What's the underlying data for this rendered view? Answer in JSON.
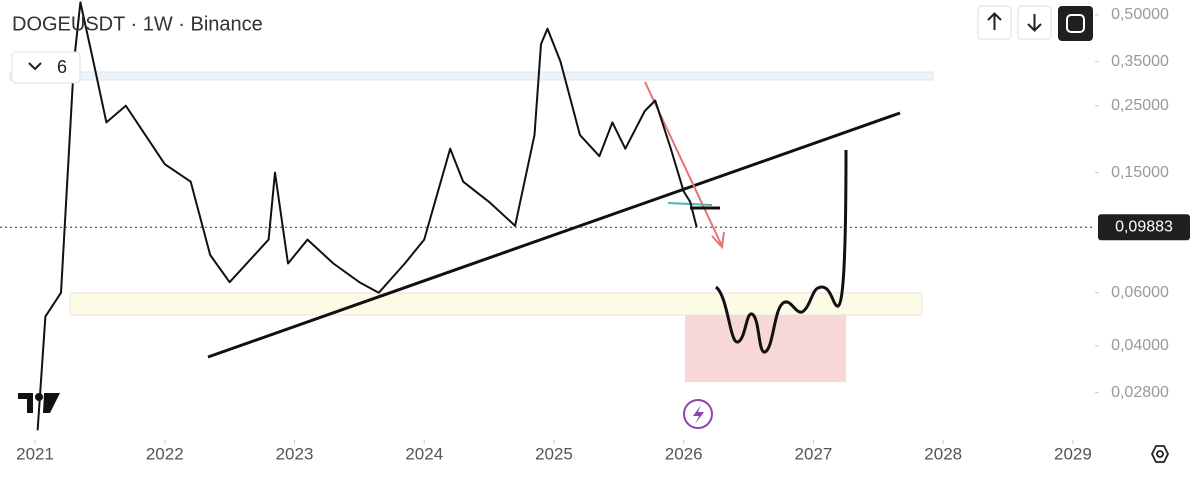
{
  "chart_data": {
    "type": "line",
    "title": "DOGEUSDT · 1W · Binance",
    "indicator_count": "6",
    "log_scale": true,
    "xlim": [
      2020.73,
      2029.17
    ],
    "ylim": [
      0.0195,
      0.56
    ],
    "xticks": [
      2021,
      2022,
      2023,
      2024,
      2025,
      2026,
      2027,
      2028,
      2029
    ],
    "yticks": [
      {
        "value": 0.5,
        "label": "0,50000"
      },
      {
        "value": 0.35,
        "label": "0,35000"
      },
      {
        "value": 0.25,
        "label": "0,25000"
      },
      {
        "value": 0.15,
        "label": "0,15000"
      },
      {
        "value": 0.06,
        "label": "0,06000"
      },
      {
        "value": 0.04,
        "label": "0,04000"
      },
      {
        "value": 0.028,
        "label": "0,02800"
      }
    ],
    "last_price": {
      "value": 0.09883,
      "label": "0,09883"
    },
    "series": [
      {
        "color": "#111111",
        "x": [
          2021.02,
          2021.08,
          2021.2,
          2021.3,
          2021.35,
          2021.45,
          2021.55,
          2021.7,
          2021.85,
          2022.0,
          2022.2,
          2022.35,
          2022.5,
          2022.8,
          2022.85,
          2022.95,
          2023.1,
          2023.3,
          2023.5,
          2023.65,
          2023.85,
          2024.0,
          2024.2,
          2024.3,
          2024.5,
          2024.7,
          2024.85,
          2024.9,
          2024.95,
          2025.05,
          2025.2,
          2025.35,
          2025.45,
          2025.55,
          2025.7,
          2025.78,
          2025.9,
          2026.0,
          2026.05,
          2026.1
        ],
        "values": [
          0.021,
          0.05,
          0.06,
          0.35,
          0.55,
          0.35,
          0.22,
          0.25,
          0.2,
          0.16,
          0.14,
          0.08,
          0.065,
          0.09,
          0.15,
          0.075,
          0.09,
          0.075,
          0.065,
          0.06,
          0.075,
          0.09,
          0.18,
          0.14,
          0.12,
          0.1,
          0.2,
          0.4,
          0.45,
          0.35,
          0.2,
          0.17,
          0.22,
          0.18,
          0.24,
          0.26,
          0.18,
          0.13,
          0.12,
          0.09883
        ]
      }
    ]
  }
}
